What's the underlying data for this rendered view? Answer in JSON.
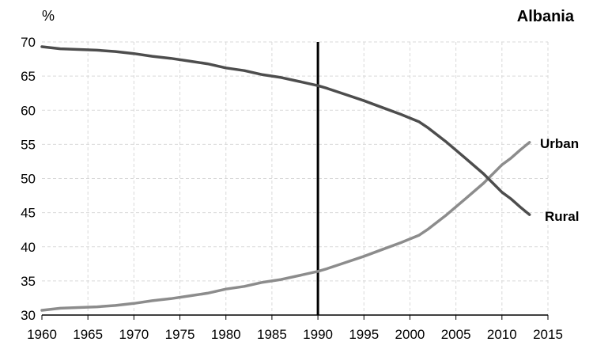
{
  "chart_data": {
    "type": "line",
    "title": "Albania",
    "ylabel": "%",
    "xlabel": "",
    "xlim": [
      1960,
      2015
    ],
    "ylim": [
      30,
      70
    ],
    "xticks": [
      1960,
      1965,
      1970,
      1975,
      1980,
      1985,
      1990,
      1995,
      2000,
      2005,
      2010,
      2015
    ],
    "yticks": [
      30,
      35,
      40,
      45,
      50,
      55,
      60,
      65,
      70
    ],
    "grid": true,
    "reference_line": {
      "x": 1990
    },
    "series": [
      {
        "name": "Urban",
        "color": "#8c8c8c",
        "points": [
          [
            1960,
            30.7
          ],
          [
            1962,
            31.0
          ],
          [
            1964,
            31.1
          ],
          [
            1966,
            31.2
          ],
          [
            1968,
            31.4
          ],
          [
            1970,
            31.7
          ],
          [
            1972,
            32.1
          ],
          [
            1974,
            32.4
          ],
          [
            1976,
            32.8
          ],
          [
            1978,
            33.2
          ],
          [
            1980,
            33.8
          ],
          [
            1982,
            34.2
          ],
          [
            1984,
            34.8
          ],
          [
            1986,
            35.2
          ],
          [
            1988,
            35.8
          ],
          [
            1990,
            36.4
          ],
          [
            1991,
            36.8
          ],
          [
            1993,
            37.7
          ],
          [
            1995,
            38.6
          ],
          [
            1997,
            39.6
          ],
          [
            1999,
            40.6
          ],
          [
            2001,
            41.7
          ],
          [
            2002,
            42.6
          ],
          [
            2004,
            44.7
          ],
          [
            2006,
            47.0
          ],
          [
            2008,
            49.3
          ],
          [
            2010,
            52.0
          ],
          [
            2011,
            53.0
          ],
          [
            2012,
            54.2
          ],
          [
            2013,
            55.3
          ]
        ]
      },
      {
        "name": "Rural",
        "color": "#4d4d4d",
        "points": [
          [
            1960,
            69.3
          ],
          [
            1962,
            69.0
          ],
          [
            1964,
            68.9
          ],
          [
            1966,
            68.8
          ],
          [
            1968,
            68.6
          ],
          [
            1970,
            68.3
          ],
          [
            1972,
            67.9
          ],
          [
            1974,
            67.6
          ],
          [
            1976,
            67.2
          ],
          [
            1978,
            66.8
          ],
          [
            1980,
            66.2
          ],
          [
            1982,
            65.8
          ],
          [
            1984,
            65.2
          ],
          [
            1986,
            64.8
          ],
          [
            1988,
            64.2
          ],
          [
            1990,
            63.6
          ],
          [
            1991,
            63.2
          ],
          [
            1993,
            62.3
          ],
          [
            1995,
            61.4
          ],
          [
            1997,
            60.4
          ],
          [
            1999,
            59.4
          ],
          [
            2001,
            58.3
          ],
          [
            2002,
            57.4
          ],
          [
            2004,
            55.3
          ],
          [
            2006,
            53.0
          ],
          [
            2008,
            50.7
          ],
          [
            2010,
            48.0
          ],
          [
            2011,
            47.0
          ],
          [
            2012,
            45.8
          ],
          [
            2013,
            44.7
          ]
        ]
      }
    ]
  }
}
